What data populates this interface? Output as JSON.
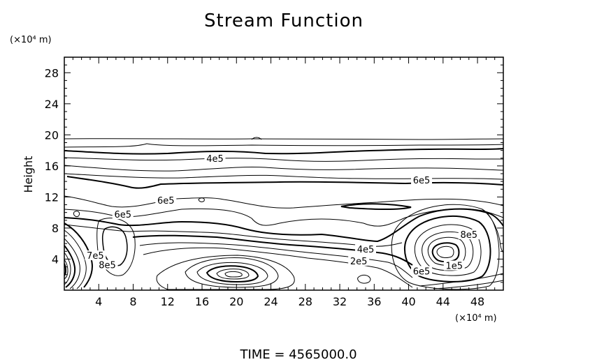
{
  "chart_data": {
    "type": "contour",
    "title": "Stream Function",
    "xlabel": "",
    "x_unit": "(×10⁴ m)",
    "ylabel": "Height",
    "y_unit": "(×10⁴ m)",
    "xlim": [
      0,
      51
    ],
    "ylim": [
      0,
      30
    ],
    "x_ticks": [
      4,
      8,
      12,
      16,
      20,
      24,
      28,
      32,
      36,
      40,
      44,
      48
    ],
    "y_ticks": [
      4,
      8,
      12,
      16,
      20,
      24,
      28
    ],
    "contour_labels": [
      {
        "text": "4e5",
        "x": 17.5,
        "y": 16.8
      },
      {
        "text": "6e5",
        "x": 41.5,
        "y": 14.0
      },
      {
        "text": "6e5",
        "x": 11.8,
        "y": 11.4
      },
      {
        "text": "6e5",
        "x": 6.8,
        "y": 9.6
      },
      {
        "text": "8e5",
        "x": 47.0,
        "y": 7.0
      },
      {
        "text": "4e5",
        "x": 35.0,
        "y": 5.1
      },
      {
        "text": "2e5",
        "x": 34.2,
        "y": 3.6
      },
      {
        "text": "1e5",
        "x": 45.3,
        "y": 3.0
      },
      {
        "text": "6e5",
        "x": 41.5,
        "y": 2.3
      },
      {
        "text": "7e5",
        "x": 3.6,
        "y": 4.3
      },
      {
        "text": "8e5",
        "x": 5.0,
        "y": 3.1
      }
    ],
    "footer": "TIME  =  4565000.0"
  }
}
